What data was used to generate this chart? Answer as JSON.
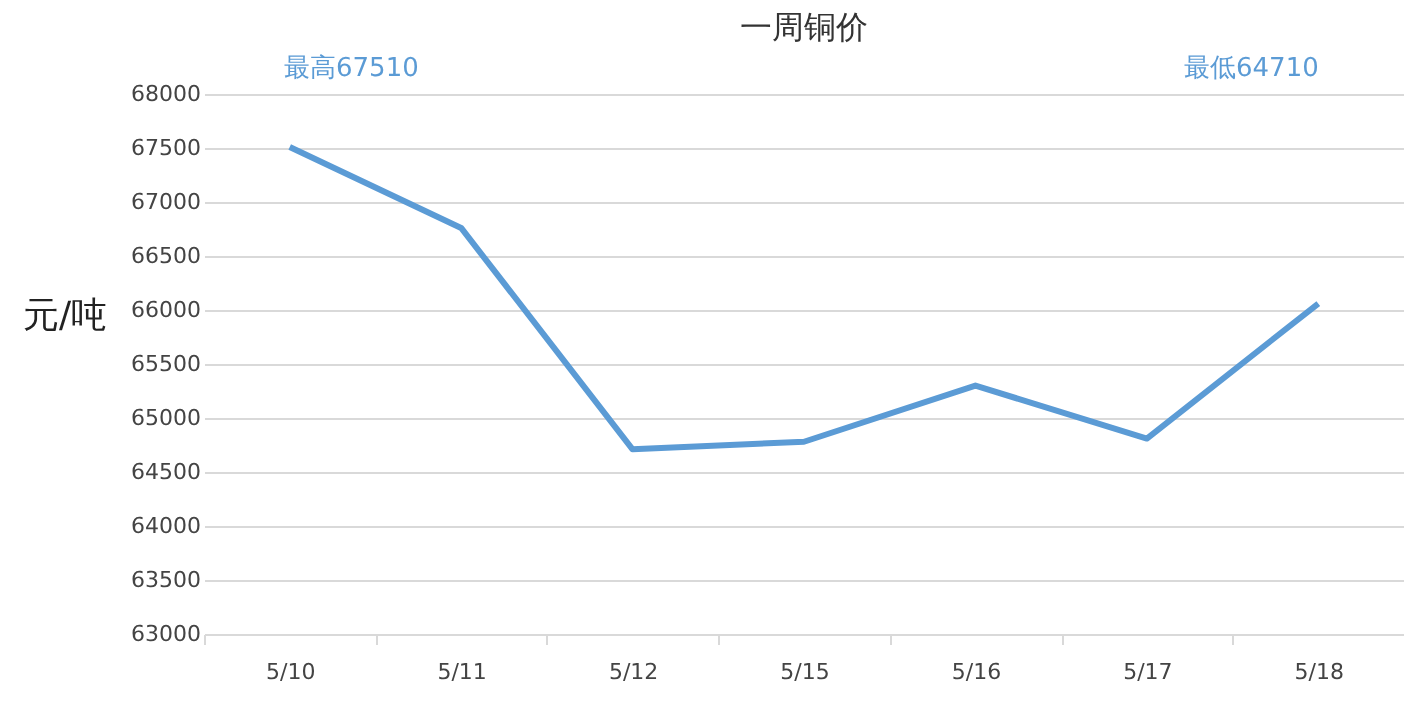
{
  "chart_data": {
    "type": "line",
    "title": "一周铜价",
    "ylabel": "元/吨",
    "categories": [
      "5/10",
      "5/11",
      "5/12",
      "5/15",
      "5/16",
      "5/17",
      "5/18"
    ],
    "series": [
      {
        "color": "#5b9bd5",
        "values": [
          67510,
          66760,
          64710,
          64780,
          65300,
          64810,
          66060
        ]
      }
    ],
    "annotations": [
      "最高67510",
      "最低64710"
    ],
    "ylim": [
      63000,
      68000
    ],
    "yticks": [
      63000,
      63500,
      64000,
      64500,
      65000,
      65500,
      66000,
      66500,
      67000,
      67500,
      68000
    ],
    "grid": "y",
    "marker": "none",
    "line_style": "solid"
  }
}
